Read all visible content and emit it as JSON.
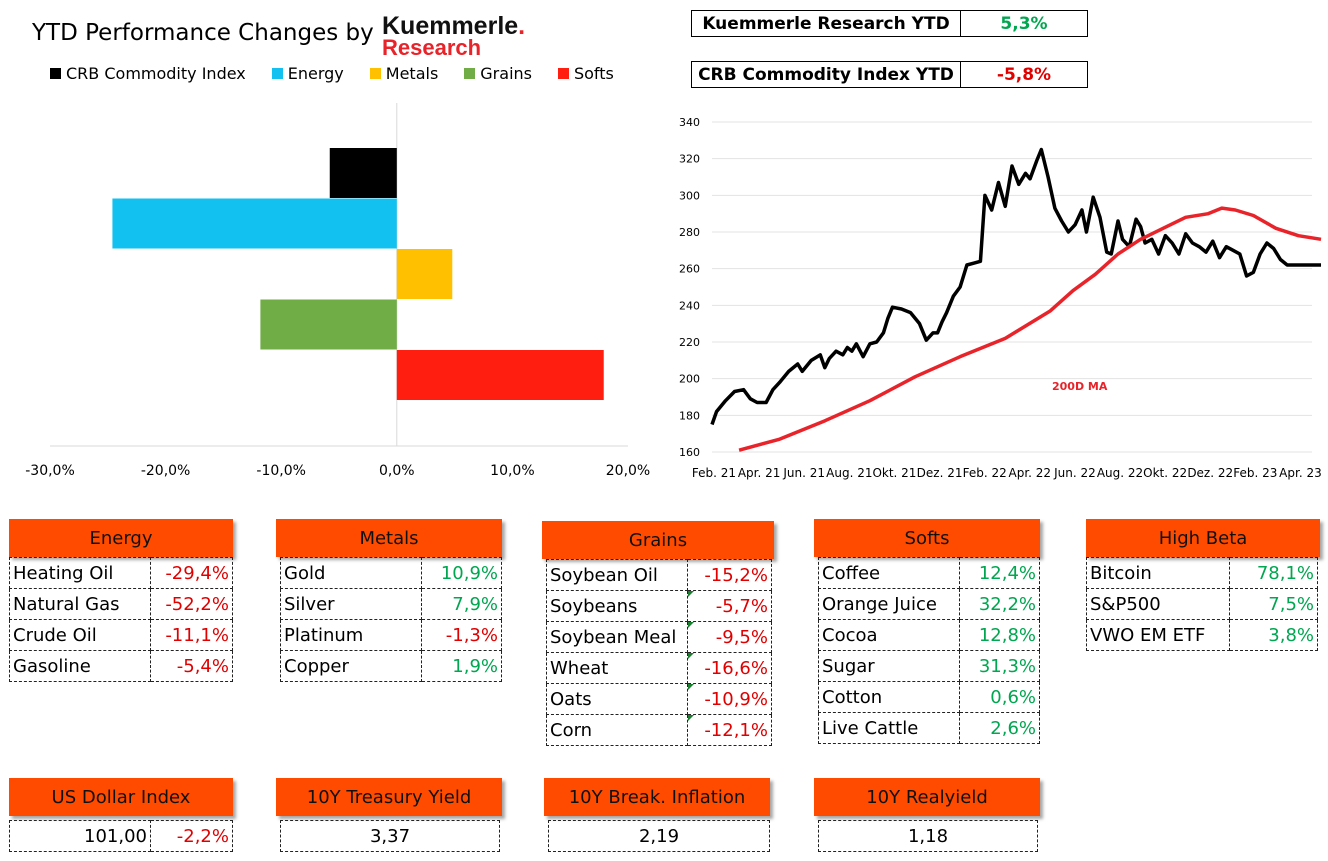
{
  "header": {
    "title": "YTD Performance Changes by",
    "logo_line1": "Kuemmerle",
    "logo_dot": ".",
    "logo_line2": "Research"
  },
  "legend": [
    {
      "label": "CRB Commodity Index",
      "color": "#000000"
    },
    {
      "label": "Energy",
      "color": "#12c1f0"
    },
    {
      "label": "Metals",
      "color": "#ffc000"
    },
    {
      "label": "Grains",
      "color": "#70ad47"
    },
    {
      "label": "Softs",
      "color": "#ff1e0f"
    }
  ],
  "ytd_boxes": [
    {
      "label": "Kuemmerle Research YTD",
      "value": "5,3%",
      "status": "pos"
    },
    {
      "label": "CRB Commodity Index YTD",
      "value": "-5,8%",
      "status": "neg"
    }
  ],
  "chart_data": [
    {
      "type": "bar",
      "orientation": "horizontal",
      "categories": [
        "CRB Commodity Index",
        "Energy",
        "Metals",
        "Grains",
        "Softs"
      ],
      "values": [
        -5.8,
        -24.6,
        4.8,
        -11.8,
        17.9
      ],
      "colors": [
        "#000000",
        "#12c1f0",
        "#ffc000",
        "#70ad47",
        "#ff1e0f"
      ],
      "xlim": [
        -30,
        20
      ],
      "xticks": [
        "-30,0%",
        "-20,0%",
        "-10,0%",
        "0,0%",
        "10,0%",
        "20,0%"
      ],
      "title": "",
      "xlabel": "",
      "ylabel": "",
      "grid": false
    },
    {
      "type": "line",
      "x_labels": [
        "Feb. 21",
        "Apr. 21",
        "Jun. 21",
        "Aug. 21",
        "Okt. 21",
        "Dez. 21",
        "Feb. 22",
        "Apr. 22",
        "Jun. 22",
        "Aug. 22",
        "Okt. 22",
        "Dez. 22",
        "Feb. 23",
        "Apr. 23"
      ],
      "ylim": [
        160,
        340
      ],
      "yticks": [
        "160",
        "180",
        "200",
        "220",
        "240",
        "260",
        "280",
        "300",
        "320",
        "340"
      ],
      "grid": true,
      "annotation": "200D MA",
      "series": [
        {
          "color": "#000000",
          "x": [
            0,
            0.1,
            0.3,
            0.5,
            0.7,
            0.85,
            1.0,
            1.2,
            1.35,
            1.5,
            1.7,
            1.9,
            2.0,
            2.2,
            2.4,
            2.5,
            2.6,
            2.75,
            2.9,
            3.0,
            3.1,
            3.2,
            3.35,
            3.5,
            3.65,
            3.8,
            3.9,
            4.0,
            4.2,
            4.4,
            4.6,
            4.75,
            4.9,
            5.0,
            5.1,
            5.2,
            5.35,
            5.5,
            5.65,
            5.8,
            5.95,
            6.05,
            6.2,
            6.35,
            6.5,
            6.65,
            6.8,
            6.95,
            7.05,
            7.2,
            7.3,
            7.45,
            7.6,
            7.75,
            7.9,
            8.05,
            8.2,
            8.3,
            8.45,
            8.6,
            8.75,
            8.85,
            9.0,
            9.1,
            9.25,
            9.4,
            9.5,
            9.6,
            9.75,
            9.9,
            10.05,
            10.2,
            10.35,
            10.5,
            10.65,
            10.8,
            10.95,
            11.1,
            11.25,
            11.4,
            11.55,
            11.7,
            11.85,
            12.0,
            12.15,
            12.3,
            12.45,
            12.6,
            12.75,
            12.9,
            13.05,
            13.2,
            13.35,
            13.5
          ],
          "values": [
            175,
            182,
            188,
            193,
            194,
            189,
            187,
            187,
            194,
            198,
            204,
            208,
            204,
            210,
            213,
            206,
            211,
            215,
            213,
            217,
            215,
            219,
            212,
            219,
            220,
            225,
            233,
            239,
            238,
            236,
            230,
            221,
            225,
            225,
            231,
            236,
            245,
            250,
            262,
            263,
            264,
            300,
            292,
            307,
            294,
            316,
            306,
            312,
            309,
            319,
            325,
            310,
            293,
            286,
            280,
            284,
            292,
            280,
            299,
            288,
            269,
            268,
            286,
            276,
            272,
            287,
            283,
            274,
            276,
            268,
            278,
            274,
            268,
            279,
            274,
            272,
            269,
            275,
            266,
            272,
            270,
            268,
            256,
            258,
            268,
            274,
            271,
            265,
            262,
            262,
            262,
            262,
            262,
            262
          ]
        },
        {
          "color": "#e8242a",
          "x": [
            0.6,
            1.5,
            2.5,
            3.5,
            4.5,
            5.5,
            6.5,
            7.5,
            8.0,
            8.5,
            9.0,
            9.5,
            10.0,
            10.5,
            11.0,
            11.3,
            11.6,
            12.0,
            12.5,
            13.0,
            13.5
          ],
          "values": [
            161,
            167,
            177,
            188,
            201,
            212,
            222,
            237,
            248,
            257,
            268,
            276,
            282,
            288,
            290,
            293,
            292,
            289,
            282,
            278,
            276
          ]
        }
      ]
    }
  ],
  "panels": {
    "energy": {
      "title": "Energy",
      "rows": [
        {
          "name": "Heating Oil",
          "value": "-29,4%",
          "status": "neg"
        },
        {
          "name": "Natural Gas",
          "value": "-52,2%",
          "status": "neg"
        },
        {
          "name": "Crude Oil",
          "value": "-11,1%",
          "status": "neg"
        },
        {
          "name": "Gasoline",
          "value": "-5,4%",
          "status": "neg"
        }
      ]
    },
    "metals": {
      "title": "Metals",
      "rows": [
        {
          "name": "Gold",
          "value": "10,9%",
          "status": "pos"
        },
        {
          "name": "Silver",
          "value": "7,9%",
          "status": "pos"
        },
        {
          "name": "Platinum",
          "value": "-1,3%",
          "status": "neg"
        },
        {
          "name": "Copper",
          "value": "1,9%",
          "status": "pos"
        }
      ]
    },
    "grains": {
      "title": "Grains",
      "rows": [
        {
          "name": "Soybean Oil",
          "value": "-15,2%",
          "status": "neg"
        },
        {
          "name": "Soybeans",
          "value": "-5,7%",
          "status": "neg"
        },
        {
          "name": "Soybean Meal",
          "value": "-9,5%",
          "status": "neg"
        },
        {
          "name": "Wheat",
          "value": "-16,6%",
          "status": "neg"
        },
        {
          "name": "Oats",
          "value": "-10,9%",
          "status": "neg"
        },
        {
          "name": "Corn",
          "value": "-12,1%",
          "status": "neg"
        }
      ]
    },
    "softs": {
      "title": "Softs",
      "rows": [
        {
          "name": "Coffee",
          "value": "12,4%",
          "status": "pos"
        },
        {
          "name": "Orange Juice",
          "value": "32,2%",
          "status": "pos"
        },
        {
          "name": "Cocoa",
          "value": "12,8%",
          "status": "pos"
        },
        {
          "name": "Sugar",
          "value": "31,3%",
          "status": "pos"
        },
        {
          "name": "Cotton",
          "value": "0,6%",
          "status": "pos"
        },
        {
          "name": "Live Cattle",
          "value": "2,6%",
          "status": "pos"
        }
      ]
    },
    "highbeta": {
      "title": "High Beta",
      "rows": [
        {
          "name": "Bitcoin",
          "value": "78,1%",
          "status": "pos"
        },
        {
          "name": "S&P500",
          "value": "7,5%",
          "status": "pos"
        },
        {
          "name": "VWO EM ETF",
          "value": "3,8%",
          "status": "pos"
        }
      ]
    }
  },
  "bottom_panels": {
    "usd": {
      "title": "US Dollar Index",
      "value": "101,00",
      "change": "-2,2%",
      "status": "neg"
    },
    "treasury": {
      "title": "10Y Treasury Yield",
      "value": "3,37"
    },
    "breakeven": {
      "title": "10Y Break. Inflation",
      "value": "2,19"
    },
    "realyield": {
      "title": "10Y Realyield",
      "value": "1,18"
    }
  }
}
